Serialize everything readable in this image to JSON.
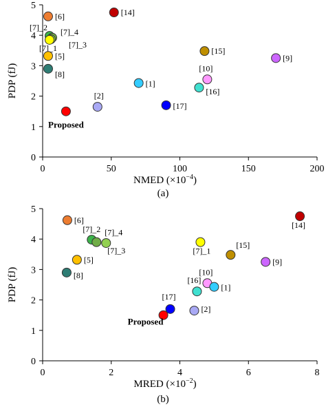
{
  "chart_data": [
    {
      "type": "scatter",
      "caption": "(a)",
      "xlabel": "NMED (×10",
      "xlabel_exp": "−4",
      "xlabel_close": ")",
      "ylabel": "PDP (fJ)",
      "xlim": [
        0,
        200
      ],
      "ylim": [
        0,
        5
      ],
      "xticks": [
        "0",
        "50",
        "100",
        "150",
        "200"
      ],
      "yticks": [
        "0",
        "1",
        "2",
        "3",
        "4",
        "5"
      ],
      "grid": false,
      "points": [
        {
          "label": "[6]",
          "x": 4,
          "y": 4.62,
          "color": "#ED7D31"
        },
        {
          "label": "[14]",
          "x": 52,
          "y": 4.75,
          "color": "#C00000"
        },
        {
          "label": "[7]_2",
          "x": 5,
          "y": 3.98,
          "color": "#3CB44B"
        },
        {
          "label": "[7]_4",
          "x": 7,
          "y": 3.92,
          "color": "#70AD47"
        },
        {
          "label": "[7]_3",
          "x": 6,
          "y": 3.87,
          "color": "#92D050"
        },
        {
          "label": "[7]_1",
          "x": 5,
          "y": 3.85,
          "color": "#FFFF00"
        },
        {
          "label": "[5]",
          "x": 4,
          "y": 3.32,
          "color": "#FFC000"
        },
        {
          "label": "[15]",
          "x": 118,
          "y": 3.48,
          "color": "#BF8F00"
        },
        {
          "label": "[9]",
          "x": 170,
          "y": 3.25,
          "color": "#CC66FF"
        },
        {
          "label": "[8]",
          "x": 4,
          "y": 2.9,
          "color": "#2E7D74"
        },
        {
          "label": "[10]",
          "x": 120,
          "y": 2.55,
          "color": "#FF99FF"
        },
        {
          "label": "[1]",
          "x": 70,
          "y": 2.43,
          "color": "#33CCFF"
        },
        {
          "label": "[16]",
          "x": 114,
          "y": 2.28,
          "color": "#40E0D0"
        },
        {
          "label": "[17]",
          "x": 90,
          "y": 1.7,
          "color": "#0000FF"
        },
        {
          "label": "[2]",
          "x": 40,
          "y": 1.65,
          "color": "#A9A9F5"
        },
        {
          "label": "Proposed",
          "x": 17,
          "y": 1.5,
          "color": "#FF0000",
          "bold": true
        }
      ]
    },
    {
      "type": "scatter",
      "caption": "(b)",
      "xlabel": "MRED (×10",
      "xlabel_exp": "−2",
      "xlabel_close": ")",
      "ylabel": "PDP (fJ)",
      "xlim": [
        0,
        8
      ],
      "ylim": [
        0,
        5
      ],
      "xticks": [
        "0",
        "2",
        "4",
        "6",
        "8"
      ],
      "yticks": [
        "0",
        "1",
        "2",
        "3",
        "4",
        "5"
      ],
      "grid": false,
      "points": [
        {
          "label": "[6]",
          "x": 0.72,
          "y": 4.62,
          "color": "#ED7D31"
        },
        {
          "label": "[14]",
          "x": 7.5,
          "y": 4.75,
          "color": "#C00000"
        },
        {
          "label": "[7]_2",
          "x": 1.43,
          "y": 3.98,
          "color": "#3CB44B"
        },
        {
          "label": "[7]_4",
          "x": 1.57,
          "y": 3.9,
          "color": "#70AD47"
        },
        {
          "label": "[7]_3",
          "x": 1.85,
          "y": 3.87,
          "color": "#92D050"
        },
        {
          "label": "[7]_1",
          "x": 4.6,
          "y": 3.9,
          "color": "#FFFF00"
        },
        {
          "label": "[5]",
          "x": 1.0,
          "y": 3.32,
          "color": "#FFC000"
        },
        {
          "label": "[15]",
          "x": 5.48,
          "y": 3.48,
          "color": "#BF8F00"
        },
        {
          "label": "[9]",
          "x": 6.5,
          "y": 3.25,
          "color": "#CC66FF"
        },
        {
          "label": "[8]",
          "x": 0.7,
          "y": 2.9,
          "color": "#2E7D74"
        },
        {
          "label": "[10]",
          "x": 4.8,
          "y": 2.55,
          "color": "#FF99FF"
        },
        {
          "label": "[1]",
          "x": 5.0,
          "y": 2.43,
          "color": "#33CCFF"
        },
        {
          "label": "[16]",
          "x": 4.5,
          "y": 2.28,
          "color": "#40E0D0"
        },
        {
          "label": "[17]",
          "x": 3.72,
          "y": 1.7,
          "color": "#0000FF"
        },
        {
          "label": "[2]",
          "x": 4.42,
          "y": 1.65,
          "color": "#A9A9F5"
        },
        {
          "label": "Proposed",
          "x": 3.52,
          "y": 1.5,
          "color": "#FF0000",
          "bold": true
        }
      ]
    }
  ]
}
